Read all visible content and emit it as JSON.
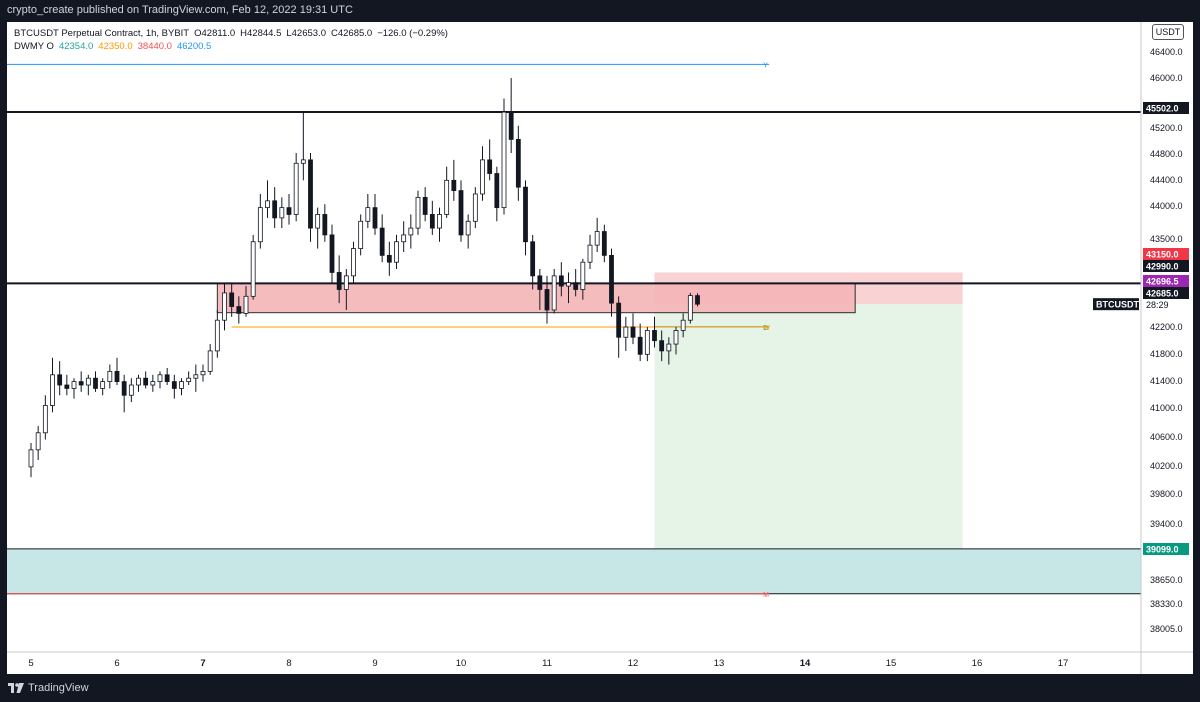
{
  "header": {
    "published": "crypto_create published on TradingView.com, Feb 12, 2022 19:31 UTC"
  },
  "legend": {
    "symbol_line": "BTCUSDT Perpetual Contract, 1h, BYBIT",
    "ohlc": {
      "o": "O42811.0",
      "h": "H42844.5",
      "l": "L42653.0",
      "c": "C42685.0",
      "change": "−126.0 (−0.29%)"
    },
    "indicator": {
      "name": "DWMY O",
      "values": [
        "42354.0",
        "42350.0",
        "38440.0",
        "46200.5"
      ]
    }
  },
  "currency_badge": "USDT",
  "footer": {
    "logo_text": "TradingView"
  },
  "colors": {
    "up": "#ffffff",
    "down": "#131722",
    "wick": "#131722",
    "resistance_zone": "#f7c3c5",
    "profit_zone": "#e5f4e6",
    "support_zone": "#c7e7e7",
    "indicator_green": "#26a69a",
    "indicator_orange": "#ff9800",
    "indicator_red": "#ef5350",
    "indicator_blue": "#2196f3",
    "last_price_purple": "#9c27b0",
    "stop_red": "#f23645",
    "target_green": "#089981"
  },
  "chart_data": {
    "type": "candlestick",
    "symbol": "BTCUSDT",
    "interval": "1h",
    "y_ticks": [
      "46400.0",
      "46000.0",
      "45200.0",
      "44800.0",
      "44400.0",
      "44000.0",
      "43500.0",
      "42200.0",
      "41800.0",
      "41400.0",
      "41000.0",
      "40600.0",
      "40200.0",
      "39800.0",
      "39400.0",
      "38650.0",
      "38330.0",
      "38005.0"
    ],
    "x_ticks": [
      "5",
      "6",
      "7",
      "8",
      "9",
      "10",
      "11",
      "12",
      "13",
      "14",
      "15",
      "16",
      "17"
    ],
    "bold_x_ticks": [
      "7",
      "14"
    ],
    "candles": [
      [
        "2022-02-05 00:00",
        40300,
        40650,
        40150,
        40550
      ],
      [
        "2022-02-05 02:00",
        40550,
        40900,
        40400,
        40800
      ],
      [
        "2022-02-05 04:00",
        40800,
        41350,
        40700,
        41200
      ],
      [
        "2022-02-05 06:00",
        41200,
        41900,
        41100,
        41650
      ],
      [
        "2022-02-05 08:00",
        41650,
        41850,
        41350,
        41500
      ],
      [
        "2022-02-05 10:00",
        41500,
        41650,
        41350,
        41450
      ],
      [
        "2022-02-05 12:00",
        41450,
        41600,
        41300,
        41550
      ],
      [
        "2022-02-05 14:00",
        41550,
        41700,
        41400,
        41500
      ],
      [
        "2022-02-05 16:00",
        41500,
        41650,
        41350,
        41600
      ],
      [
        "2022-02-05 18:00",
        41600,
        41700,
        41400,
        41450
      ],
      [
        "2022-02-05 20:00",
        41450,
        41600,
        41350,
        41550
      ],
      [
        "2022-02-05 22:00",
        41550,
        41800,
        41450,
        41700
      ],
      [
        "2022-02-06 00:00",
        41700,
        41900,
        41500,
        41550
      ],
      [
        "2022-02-06 02:00",
        41550,
        41650,
        41100,
        41350
      ],
      [
        "2022-02-06 04:00",
        41350,
        41600,
        41250,
        41500
      ],
      [
        "2022-02-06 06:00",
        41500,
        41650,
        41400,
        41600
      ],
      [
        "2022-02-06 08:00",
        41600,
        41700,
        41450,
        41500
      ],
      [
        "2022-02-06 10:00",
        41500,
        41650,
        41400,
        41550
      ],
      [
        "2022-02-06 12:00",
        41550,
        41700,
        41450,
        41650
      ],
      [
        "2022-02-06 14:00",
        41650,
        41750,
        41500,
        41550
      ],
      [
        "2022-02-06 16:00",
        41550,
        41650,
        41300,
        41450
      ],
      [
        "2022-02-06 18:00",
        41450,
        41600,
        41350,
        41550
      ],
      [
        "2022-02-06 20:00",
        41550,
        41700,
        41500,
        41600
      ],
      [
        "2022-02-06 22:00",
        41600,
        41800,
        41400,
        41650
      ],
      [
        "2022-02-07 00:00",
        41650,
        41800,
        41550,
        41700
      ],
      [
        "2022-02-07 02:00",
        41700,
        42100,
        41650,
        42000
      ],
      [
        "2022-02-07 04:00",
        42000,
        42600,
        41900,
        42450
      ],
      [
        "2022-02-07 06:00",
        42450,
        43000,
        42300,
        42850
      ],
      [
        "2022-02-07 08:00",
        42850,
        43000,
        42500,
        42650
      ],
      [
        "2022-02-07 10:00",
        42650,
        42800,
        42400,
        42550
      ],
      [
        "2022-02-07 12:00",
        42550,
        42950,
        42500,
        42800
      ],
      [
        "2022-02-07 14:00",
        42800,
        43700,
        42750,
        43600
      ],
      [
        "2022-02-07 16:00",
        43600,
        44300,
        43500,
        44100
      ],
      [
        "2022-02-07 18:00",
        44100,
        44500,
        43950,
        44200
      ],
      [
        "2022-02-07 20:00",
        44200,
        44400,
        43800,
        43950
      ],
      [
        "2022-02-07 22:00",
        43950,
        44250,
        43800,
        44100
      ],
      [
        "2022-02-08 00:00",
        44100,
        44300,
        43850,
        44000
      ],
      [
        "2022-02-08 02:00",
        44000,
        44900,
        43900,
        44750
      ],
      [
        "2022-02-08 04:00",
        44750,
        45500,
        44500,
        44800
      ],
      [
        "2022-02-08 06:00",
        44800,
        44900,
        43600,
        43800
      ],
      [
        "2022-02-08 08:00",
        43800,
        44100,
        43500,
        44000
      ],
      [
        "2022-02-08 10:00",
        44000,
        44150,
        43600,
        43700
      ],
      [
        "2022-02-08 12:00",
        43700,
        43850,
        43000,
        43150
      ],
      [
        "2022-02-08 14:00",
        43150,
        43400,
        42700,
        42900
      ],
      [
        "2022-02-08 16:00",
        42900,
        43200,
        42600,
        43100
      ],
      [
        "2022-02-08 18:00",
        43100,
        43600,
        43000,
        43500
      ],
      [
        "2022-02-08 20:00",
        43500,
        44000,
        43400,
        43900
      ],
      [
        "2022-02-08 22:00",
        43900,
        44300,
        43800,
        44100
      ],
      [
        "2022-02-09 00:00",
        44100,
        44300,
        43700,
        43800
      ],
      [
        "2022-02-09 02:00",
        43800,
        44000,
        43300,
        43400
      ],
      [
        "2022-02-09 04:00",
        43400,
        43600,
        43100,
        43300
      ],
      [
        "2022-02-09 06:00",
        43300,
        43700,
        43200,
        43600
      ],
      [
        "2022-02-09 08:00",
        43600,
        43900,
        43450,
        43700
      ],
      [
        "2022-02-09 10:00",
        43700,
        44000,
        43500,
        43800
      ],
      [
        "2022-02-09 12:00",
        43800,
        44350,
        43700,
        44250
      ],
      [
        "2022-02-09 14:00",
        44250,
        44400,
        43900,
        44000
      ],
      [
        "2022-02-09 16:00",
        44000,
        44200,
        43700,
        43800
      ],
      [
        "2022-02-09 18:00",
        43800,
        44100,
        43600,
        44000
      ],
      [
        "2022-02-09 20:00",
        44000,
        44700,
        43950,
        44500
      ],
      [
        "2022-02-09 22:00",
        44500,
        44800,
        44200,
        44350
      ],
      [
        "2022-02-10 00:00",
        44350,
        44500,
        43600,
        43700
      ],
      [
        "2022-02-10 02:00",
        43700,
        44000,
        43500,
        43900
      ],
      [
        "2022-02-10 04:00",
        43900,
        44400,
        43800,
        44300
      ],
      [
        "2022-02-10 06:00",
        44300,
        45000,
        44200,
        44800
      ],
      [
        "2022-02-10 08:00",
        44800,
        45100,
        44500,
        44600
      ],
      [
        "2022-02-10 10:00",
        44600,
        44700,
        43900,
        44100
      ],
      [
        "2022-02-10 12:00",
        44100,
        45700,
        44000,
        45500
      ],
      [
        "2022-02-10 14:00",
        45500,
        46000,
        44900,
        45100
      ],
      [
        "2022-02-10 16:00",
        45100,
        45300,
        44200,
        44400
      ],
      [
        "2022-02-10 18:00",
        44400,
        44500,
        43400,
        43600
      ],
      [
        "2022-02-10 20:00",
        43600,
        43700,
        42900,
        43100
      ],
      [
        "2022-02-10 22:00",
        43100,
        43200,
        42600,
        42900
      ],
      [
        "2022-02-11 00:00",
        42900,
        43100,
        42400,
        42600
      ],
      [
        "2022-02-11 02:00",
        42600,
        43200,
        42550,
        43100
      ],
      [
        "2022-02-11 04:00",
        43100,
        43300,
        42800,
        42950
      ],
      [
        "2022-02-11 06:00",
        42950,
        43150,
        42700,
        43000
      ],
      [
        "2022-02-11 08:00",
        43000,
        43200,
        42800,
        42900
      ],
      [
        "2022-02-11 10:00",
        42900,
        43350,
        42750,
        43300
      ],
      [
        "2022-02-11 12:00",
        43300,
        43700,
        43200,
        43550
      ],
      [
        "2022-02-11 14:00",
        43550,
        43950,
        43450,
        43750
      ],
      [
        "2022-02-11 16:00",
        43750,
        43850,
        43300,
        43400
      ],
      [
        "2022-02-11 18:00",
        43400,
        43500,
        42500,
        42700
      ],
      [
        "2022-02-11 20:00",
        42700,
        42800,
        41900,
        42200
      ],
      [
        "2022-02-11 22:00",
        42200,
        42500,
        42000,
        42350
      ],
      [
        "2022-02-12 00:00",
        42350,
        42550,
        42100,
        42200
      ],
      [
        "2022-02-12 02:00",
        42200,
        42400,
        41850,
        41950
      ],
      [
        "2022-02-12 04:00",
        41950,
        42350,
        41850,
        42300
      ],
      [
        "2022-02-12 06:00",
        42300,
        42500,
        42050,
        42150
      ],
      [
        "2022-02-12 08:00",
        42150,
        42300,
        41850,
        42000
      ],
      [
        "2022-02-12 10:00",
        42000,
        42200,
        41800,
        42100
      ],
      [
        "2022-02-12 12:00",
        42100,
        42350,
        41950,
        42300
      ],
      [
        "2022-02-12 14:00",
        42300,
        42550,
        42200,
        42450
      ],
      [
        "2022-02-12 16:00",
        42450,
        42850,
        42400,
        42811
      ],
      [
        "2022-02-12 18:00",
        42811,
        42844.5,
        42653,
        42685
      ]
    ],
    "lines": [
      {
        "label": "45502.0",
        "price": 45502,
        "color": "#131722"
      },
      {
        "label": "42990.0",
        "price": 42990,
        "color": "#131722"
      },
      {
        "label": "39099.0",
        "price": 39099,
        "color": "#131722"
      }
    ],
    "indicator_levels": [
      {
        "value": 42354.0,
        "color": "#26a69a",
        "tag": "D"
      },
      {
        "value": 42350.0,
        "color": "#ff9800",
        "tag": "W"
      },
      {
        "value": 38440.0,
        "color": "#ef5350",
        "tag": "M"
      },
      {
        "value": 46200.5,
        "color": "#2196f3",
        "tag": "Y"
      }
    ],
    "zones": [
      {
        "name": "resistance",
        "from": 42560,
        "to": 42990
      },
      {
        "name": "support",
        "from": 38440,
        "to": 39099
      }
    ],
    "position": {
      "entry": 42685,
      "stop": 43150,
      "target": 39099
    },
    "price_labels": [
      {
        "text": "45502.0",
        "price": 45502,
        "bg": "#131722",
        "fg": "#ffffff"
      },
      {
        "text": "43150.0",
        "price": 43150,
        "bg": "#f23645",
        "fg": "#ffffff"
      },
      {
        "text": "42990.0",
        "price": 42990,
        "bg": "#131722",
        "fg": "#ffffff"
      },
      {
        "text": "42696.5",
        "price": 42696.5,
        "bg": "#9c27b0",
        "fg": "#ffffff"
      },
      {
        "text": "42685.0",
        "price": 42685,
        "bg": "#131722",
        "fg": "#ffffff"
      },
      {
        "text": "39099.0",
        "price": 39099,
        "bg": "#089981",
        "fg": "#ffffff"
      }
    ],
    "countdown": "28:29",
    "symbol_tag": "BTCUSDT",
    "last_price": 42685.0
  }
}
